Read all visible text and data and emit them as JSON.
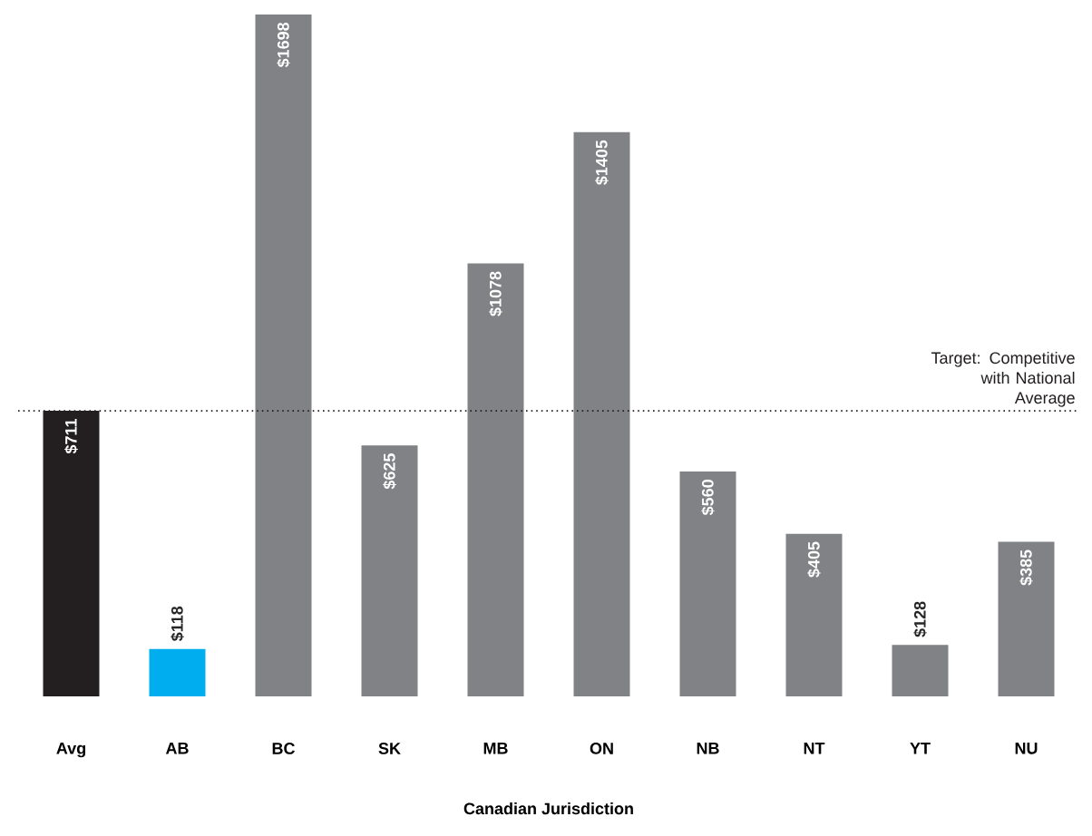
{
  "chart_data": {
    "type": "bar",
    "xlabel": "Canadian Jurisdiction",
    "categories": [
      "Avg",
      "AB",
      "BC",
      "SK",
      "MB",
      "ON",
      "NB",
      "NT",
      "YT",
      "NU"
    ],
    "values": [
      711,
      118,
      1698,
      625,
      1078,
      1405,
      560,
      405,
      128,
      385
    ],
    "colors": [
      "#231f20",
      "#00aeef",
      "#808285",
      "#808285",
      "#808285",
      "#808285",
      "#808285",
      "#808285",
      "#808285",
      "#808285"
    ],
    "value_labels": [
      "$711",
      "$118",
      "$1698",
      "$625",
      "$1078",
      "$1405",
      "$560",
      "$405",
      "$128",
      "$385"
    ],
    "ref_lines": [
      {
        "axis": "y",
        "value": 711,
        "label": "Target: Competitive with National Average",
        "color": "#231f20",
        "line_style": "dotted"
      }
    ]
  }
}
